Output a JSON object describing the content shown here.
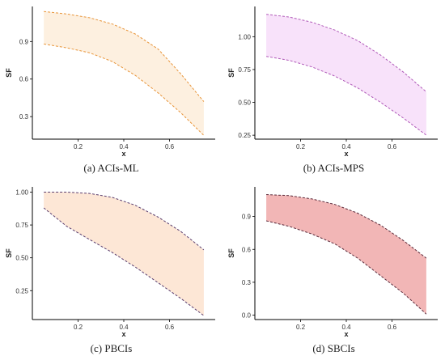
{
  "chart_data": [
    {
      "type": "area",
      "caption": "(a) ACIs-ML",
      "xlabel": "x",
      "ylabel": "SF",
      "xlim": [
        0.0,
        0.8
      ],
      "ylim": [
        0.12,
        1.18
      ],
      "xticks": [
        0.2,
        0.4,
        0.6
      ],
      "xtick_labels": [
        "0.2",
        "0.4",
        "0.6"
      ],
      "yticks": [
        0.3,
        0.6,
        0.9
      ],
      "ytick_labels": [
        "0.3",
        "0.6",
        "0.9"
      ],
      "fill_color": "#fdf0e0",
      "line_color": "#e8953a",
      "x": [
        0.05,
        0.15,
        0.25,
        0.35,
        0.45,
        0.55,
        0.65,
        0.75
      ],
      "upper": [
        1.14,
        1.12,
        1.09,
        1.04,
        0.96,
        0.84,
        0.64,
        0.42
      ],
      "lower": [
        0.88,
        0.85,
        0.81,
        0.74,
        0.63,
        0.49,
        0.33,
        0.15
      ]
    },
    {
      "type": "area",
      "caption": "(b) ACIs-MPS",
      "xlabel": "x",
      "ylabel": "SF",
      "xlim": [
        0.0,
        0.8
      ],
      "ylim": [
        0.22,
        1.23
      ],
      "xticks": [
        0.2,
        0.4,
        0.6
      ],
      "xtick_labels": [
        "0.2",
        "0.4",
        "0.6"
      ],
      "yticks": [
        0.25,
        0.5,
        0.75,
        1.0
      ],
      "ytick_labels": [
        "0.25",
        "0.50",
        "0.75",
        "1.00"
      ],
      "fill_color": "#f8e2fa",
      "line_color": "#b05ab8",
      "x": [
        0.05,
        0.15,
        0.25,
        0.35,
        0.45,
        0.55,
        0.65,
        0.75
      ],
      "upper": [
        1.17,
        1.15,
        1.11,
        1.05,
        0.97,
        0.86,
        0.73,
        0.58
      ],
      "lower": [
        0.85,
        0.82,
        0.77,
        0.7,
        0.61,
        0.5,
        0.38,
        0.25
      ]
    },
    {
      "type": "area",
      "caption": "(c) PBCIs",
      "xlabel": "x",
      "ylabel": "SF",
      "xlim": [
        0.0,
        0.8
      ],
      "ylim": [
        0.03,
        1.04
      ],
      "xticks": [
        0.2,
        0.4,
        0.6
      ],
      "xtick_labels": [
        "0.2",
        "0.4",
        "0.6"
      ],
      "yticks": [
        0.25,
        0.5,
        0.75,
        1.0
      ],
      "ytick_labels": [
        "0.25",
        "0.50",
        "0.75",
        "1.00"
      ],
      "fill_color": "#fde7d6",
      "line_color": "#5a3d6e",
      "x": [
        0.05,
        0.15,
        0.25,
        0.35,
        0.45,
        0.55,
        0.65,
        0.75
      ],
      "upper": [
        1.0,
        1.0,
        0.99,
        0.96,
        0.9,
        0.81,
        0.7,
        0.56
      ],
      "lower": [
        0.88,
        0.74,
        0.64,
        0.54,
        0.43,
        0.31,
        0.19,
        0.06
      ]
    },
    {
      "type": "area",
      "caption": "(d) SBCIs",
      "xlabel": "x",
      "ylabel": "SF",
      "xlim": [
        0.0,
        0.8
      ],
      "ylim": [
        -0.04,
        1.17
      ],
      "xticks": [
        0.2,
        0.4,
        0.6
      ],
      "xtick_labels": [
        "0.2",
        "0.4",
        "0.6"
      ],
      "yticks": [
        0.0,
        0.3,
        0.6,
        0.9
      ],
      "ytick_labels": [
        "0.0",
        "0.3",
        "0.6",
        "0.9"
      ],
      "fill_color": "#f2b6b6",
      "line_color": "#5a2a3a",
      "x": [
        0.05,
        0.15,
        0.25,
        0.35,
        0.45,
        0.55,
        0.65,
        0.75
      ],
      "upper": [
        1.1,
        1.09,
        1.06,
        1.01,
        0.93,
        0.82,
        0.68,
        0.52
      ],
      "lower": [
        0.86,
        0.81,
        0.74,
        0.65,
        0.52,
        0.36,
        0.2,
        0.01
      ]
    }
  ]
}
